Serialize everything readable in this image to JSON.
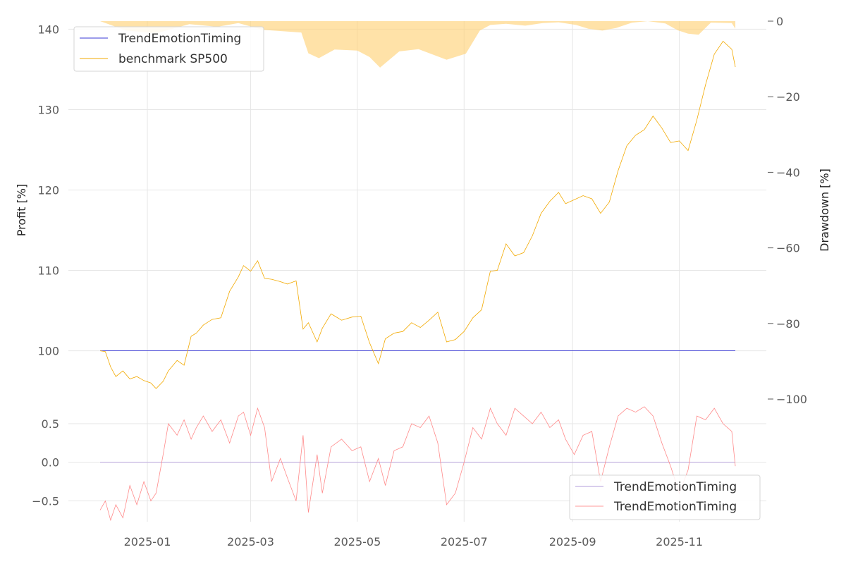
{
  "chart_data": [
    {
      "type": "line",
      "panel": "top",
      "title": "",
      "xlabel": "",
      "ylabel": "Profit [%]",
      "ylim": [
        94,
        141
      ],
      "y_ticks": [
        100,
        110,
        120,
        130,
        140
      ],
      "y_tick_labels": [
        "100",
        "110",
        "120",
        "130",
        "140"
      ],
      "x_range": [
        "2024-12-05",
        "2025-12-03"
      ],
      "grid": true,
      "legend": {
        "position": "top-left",
        "entries": [
          {
            "label": "TrendEmotionTiming",
            "color": "#3a3ad6"
          },
          {
            "label": "benchmark SP500",
            "color": "#f2a900"
          }
        ]
      },
      "series": [
        {
          "name": "TrendEmotionTiming",
          "color": "#3a3ad6",
          "x": [
            "2024-12-05",
            "2025-12-03"
          ],
          "values": [
            100,
            100
          ]
        },
        {
          "name": "benchmark SP500",
          "color": "#f2a900",
          "x": [
            "2024-12-05",
            "2024-12-08",
            "2024-12-11",
            "2024-12-14",
            "2024-12-18",
            "2024-12-22",
            "2024-12-26",
            "2024-12-30",
            "2025-01-03",
            "2025-01-06",
            "2025-01-10",
            "2025-01-13",
            "2025-01-18",
            "2025-01-22",
            "2025-01-26",
            "2025-01-29",
            "2025-02-02",
            "2025-02-07",
            "2025-02-12",
            "2025-02-17",
            "2025-02-22",
            "2025-02-25",
            "2025-03-01",
            "2025-03-05",
            "2025-03-09",
            "2025-03-13",
            "2025-03-18",
            "2025-03-22",
            "2025-03-27",
            "2025-03-31",
            "2025-04-03",
            "2025-04-08",
            "2025-04-11",
            "2025-04-16",
            "2025-04-22",
            "2025-04-28",
            "2025-05-03",
            "2025-05-08",
            "2025-05-13",
            "2025-05-17",
            "2025-05-22",
            "2025-05-27",
            "2025-06-01",
            "2025-06-06",
            "2025-06-11",
            "2025-06-16",
            "2025-06-21",
            "2025-06-26",
            "2025-07-01",
            "2025-07-06",
            "2025-07-11",
            "2025-07-16",
            "2025-07-20",
            "2025-07-25",
            "2025-07-30",
            "2025-08-04",
            "2025-08-09",
            "2025-08-14",
            "2025-08-19",
            "2025-08-24",
            "2025-08-28",
            "2025-09-02",
            "2025-09-07",
            "2025-09-12",
            "2025-09-17",
            "2025-09-22",
            "2025-09-27",
            "2025-10-02",
            "2025-10-07",
            "2025-10-12",
            "2025-10-17",
            "2025-10-22",
            "2025-10-27",
            "2025-11-01",
            "2025-11-06",
            "2025-11-11",
            "2025-11-16",
            "2025-11-21",
            "2025-11-26",
            "2025-12-01",
            "2025-12-03"
          ],
          "values": [
            100,
            99.9,
            98,
            96.8,
            97.5,
            96.5,
            96.8,
            96.3,
            96,
            95.3,
            96.2,
            97.5,
            98.8,
            98.2,
            101.8,
            102.2,
            103.2,
            103.9,
            104.1,
            107.4,
            109.2,
            110.6,
            109.9,
            111.2,
            109,
            108.9,
            108.6,
            108.3,
            108.7,
            102.7,
            103.5,
            101.1,
            102.8,
            104.6,
            103.8,
            104.2,
            104.3,
            101,
            98.4,
            101.5,
            102.2,
            102.4,
            103.5,
            102.9,
            103.8,
            104.8,
            101.1,
            101.4,
            102.4,
            104.1,
            105.1,
            109.9,
            110,
            113.3,
            111.8,
            112.2,
            114.3,
            117.1,
            118.6,
            119.7,
            118.3,
            118.8,
            119.3,
            118.9,
            117.1,
            118.5,
            122.4,
            125.5,
            126.8,
            127.5,
            129.2,
            127.7,
            125.9,
            126.1,
            124.9,
            128.7,
            133.1,
            136.9,
            138.5,
            137.5,
            135.3
          ]
        }
      ]
    },
    {
      "type": "area",
      "panel": "top-right-axis",
      "ylabel": "Drawdown [%]",
      "ylim": [
        -100,
        0
      ],
      "y_ticks": [
        0,
        -20,
        -40,
        -60,
        -80,
        -100
      ],
      "y_tick_labels": [
        "0",
        "−20",
        "−40",
        "−60",
        "−80",
        "−100"
      ],
      "color": "#ffd27a",
      "x": [
        "2024-12-05",
        "2024-12-20",
        "2025-01-06",
        "2025-01-25",
        "2025-02-10",
        "2025-02-22",
        "2025-03-08",
        "2025-03-30",
        "2025-04-03",
        "2025-04-09",
        "2025-04-18",
        "2025-05-01",
        "2025-05-08",
        "2025-05-14",
        "2025-05-25",
        "2025-06-05",
        "2025-06-13",
        "2025-06-21",
        "2025-07-02",
        "2025-07-10",
        "2025-07-16",
        "2025-07-25",
        "2025-08-05",
        "2025-08-15",
        "2025-08-24",
        "2025-09-03",
        "2025-09-10",
        "2025-09-18",
        "2025-09-26",
        "2025-10-05",
        "2025-10-14",
        "2025-10-24",
        "2025-10-31",
        "2025-11-06",
        "2025-11-12",
        "2025-11-19",
        "2025-12-01",
        "2025-12-03"
      ],
      "values": [
        0,
        -2.5,
        -3.2,
        -0.8,
        -1.5,
        -0.5,
        -2.3,
        -3.0,
        -8.5,
        -9.8,
        -7.5,
        -7.8,
        -9.5,
        -12.3,
        -8.0,
        -7.4,
        -8.8,
        -10.2,
        -8.6,
        -2.5,
        -1.0,
        -0.7,
        -1.2,
        -0.5,
        -0.3,
        -1.0,
        -2.0,
        -2.5,
        -1.8,
        -0.4,
        0,
        -0.6,
        -2.4,
        -3.3,
        -3.6,
        -0.4,
        -0.5,
        -2.0
      ]
    },
    {
      "type": "line",
      "panel": "bottom",
      "ylabel": "",
      "ylim": [
        -0.77,
        0.82
      ],
      "y_ticks": [
        0.5,
        0.0,
        -0.5
      ],
      "y_tick_labels": [
        "0.5",
        "0.0",
        "−0.5"
      ],
      "grid": true,
      "legend": {
        "position": "bottom-right",
        "entries": [
          {
            "label": "TrendEmotionTiming",
            "color": "#b39ddb"
          },
          {
            "label": "TrendEmotionTiming",
            "color": "#ff9a9a"
          }
        ]
      },
      "series": [
        {
          "name": "TrendEmotionTiming",
          "color": "#b39ddb",
          "x": [
            "2024-12-05",
            "2025-12-03"
          ],
          "values": [
            0,
            0
          ]
        },
        {
          "name": "TrendEmotionTiming",
          "color": "#ff8a8a",
          "x": [
            "2024-12-05",
            "2024-12-08",
            "2024-12-11",
            "2024-12-14",
            "2024-12-18",
            "2024-12-22",
            "2024-12-26",
            "2024-12-30",
            "2025-01-03",
            "2025-01-06",
            "2025-01-10",
            "2025-01-13",
            "2025-01-18",
            "2025-01-22",
            "2025-01-26",
            "2025-01-29",
            "2025-02-02",
            "2025-02-07",
            "2025-02-12",
            "2025-02-17",
            "2025-02-22",
            "2025-02-25",
            "2025-03-01",
            "2025-03-05",
            "2025-03-09",
            "2025-03-13",
            "2025-03-18",
            "2025-03-22",
            "2025-03-27",
            "2025-03-31",
            "2025-04-03",
            "2025-04-08",
            "2025-04-11",
            "2025-04-16",
            "2025-04-22",
            "2025-04-28",
            "2025-05-03",
            "2025-05-08",
            "2025-05-13",
            "2025-05-17",
            "2025-05-22",
            "2025-05-27",
            "2025-06-01",
            "2025-06-06",
            "2025-06-11",
            "2025-06-16",
            "2025-06-21",
            "2025-06-26",
            "2025-07-01",
            "2025-07-06",
            "2025-07-11",
            "2025-07-16",
            "2025-07-20",
            "2025-07-25",
            "2025-07-30",
            "2025-08-04",
            "2025-08-09",
            "2025-08-14",
            "2025-08-19",
            "2025-08-24",
            "2025-08-28",
            "2025-09-02",
            "2025-09-07",
            "2025-09-12",
            "2025-09-17",
            "2025-09-22",
            "2025-09-27",
            "2025-10-02",
            "2025-10-07",
            "2025-10-12",
            "2025-10-17",
            "2025-10-22",
            "2025-10-27",
            "2025-11-01",
            "2025-11-06",
            "2025-11-11",
            "2025-11-16",
            "2025-11-21",
            "2025-11-26",
            "2025-12-01",
            "2025-12-03"
          ],
          "values": [
            -0.62,
            -0.5,
            -0.75,
            -0.55,
            -0.72,
            -0.3,
            -0.55,
            -0.25,
            -0.5,
            -0.4,
            0.1,
            0.5,
            0.35,
            0.55,
            0.3,
            0.45,
            0.6,
            0.4,
            0.55,
            0.25,
            0.6,
            0.65,
            0.35,
            0.7,
            0.45,
            -0.25,
            0.05,
            -0.2,
            -0.5,
            0.35,
            -0.65,
            0.1,
            -0.4,
            0.2,
            0.3,
            0.15,
            0.2,
            -0.25,
            0.05,
            -0.3,
            0.15,
            0.2,
            0.5,
            0.45,
            0.6,
            0.25,
            -0.55,
            -0.4,
            0.0,
            0.45,
            0.3,
            0.7,
            0.5,
            0.35,
            0.7,
            0.6,
            0.5,
            0.65,
            0.45,
            0.55,
            0.3,
            0.1,
            0.35,
            0.4,
            -0.25,
            0.2,
            0.6,
            0.7,
            0.65,
            0.72,
            0.6,
            0.25,
            -0.05,
            -0.4,
            -0.1,
            0.6,
            0.55,
            0.7,
            0.5,
            0.4,
            -0.05
          ]
        }
      ],
      "x_ticks": [
        "2025-01-01",
        "2025-03-01",
        "2025-05-01",
        "2025-07-01",
        "2025-09-01",
        "2025-11-01"
      ],
      "x_tick_labels": [
        "2025-01",
        "2025-03",
        "2025-05",
        "2025-07",
        "2025-09",
        "2025-11"
      ]
    }
  ]
}
